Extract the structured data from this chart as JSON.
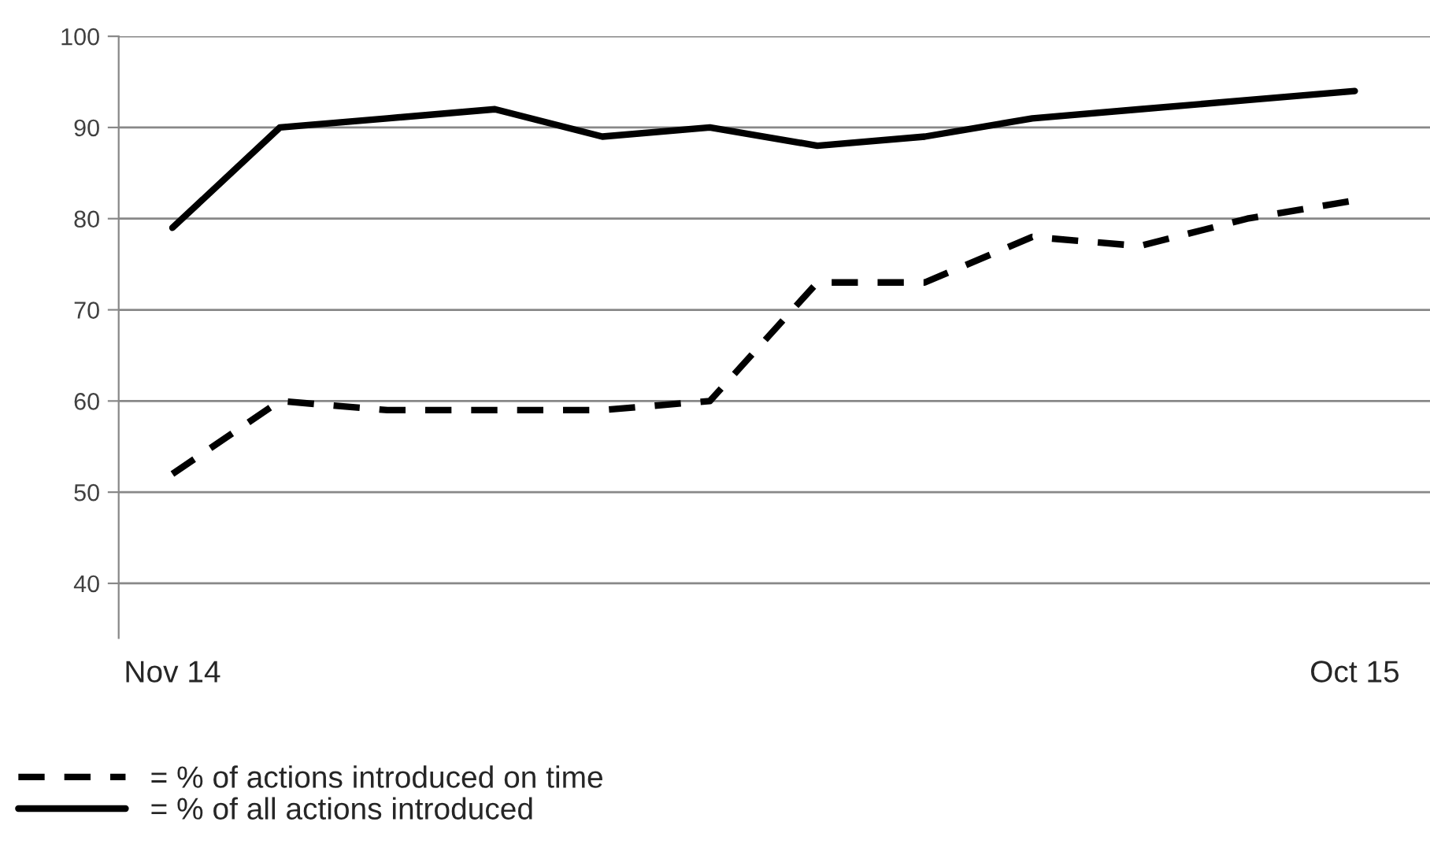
{
  "chart_data": {
    "type": "line",
    "categories": [
      "Nov 14",
      null,
      null,
      null,
      null,
      null,
      null,
      null,
      null,
      null,
      null,
      "Oct 15"
    ],
    "series": [
      {
        "name": "= % of actions introduced on time",
        "color": "#000000",
        "line_style": "dashed",
        "values": [
          52,
          60,
          59,
          59,
          59,
          60,
          73,
          73,
          78,
          77,
          80,
          82
        ]
      },
      {
        "name": "= % of all actions introduced",
        "color": "#000000",
        "line_style": "solid",
        "values": [
          79,
          90,
          91,
          92,
          89,
          90,
          88,
          89,
          91,
          92,
          93,
          94
        ]
      }
    ],
    "ylim": [
      34,
      100
    ],
    "yticks": [
      40,
      50,
      60,
      70,
      80,
      90,
      100
    ],
    "grid": "y",
    "legend": "bottom left",
    "marker": "none"
  }
}
